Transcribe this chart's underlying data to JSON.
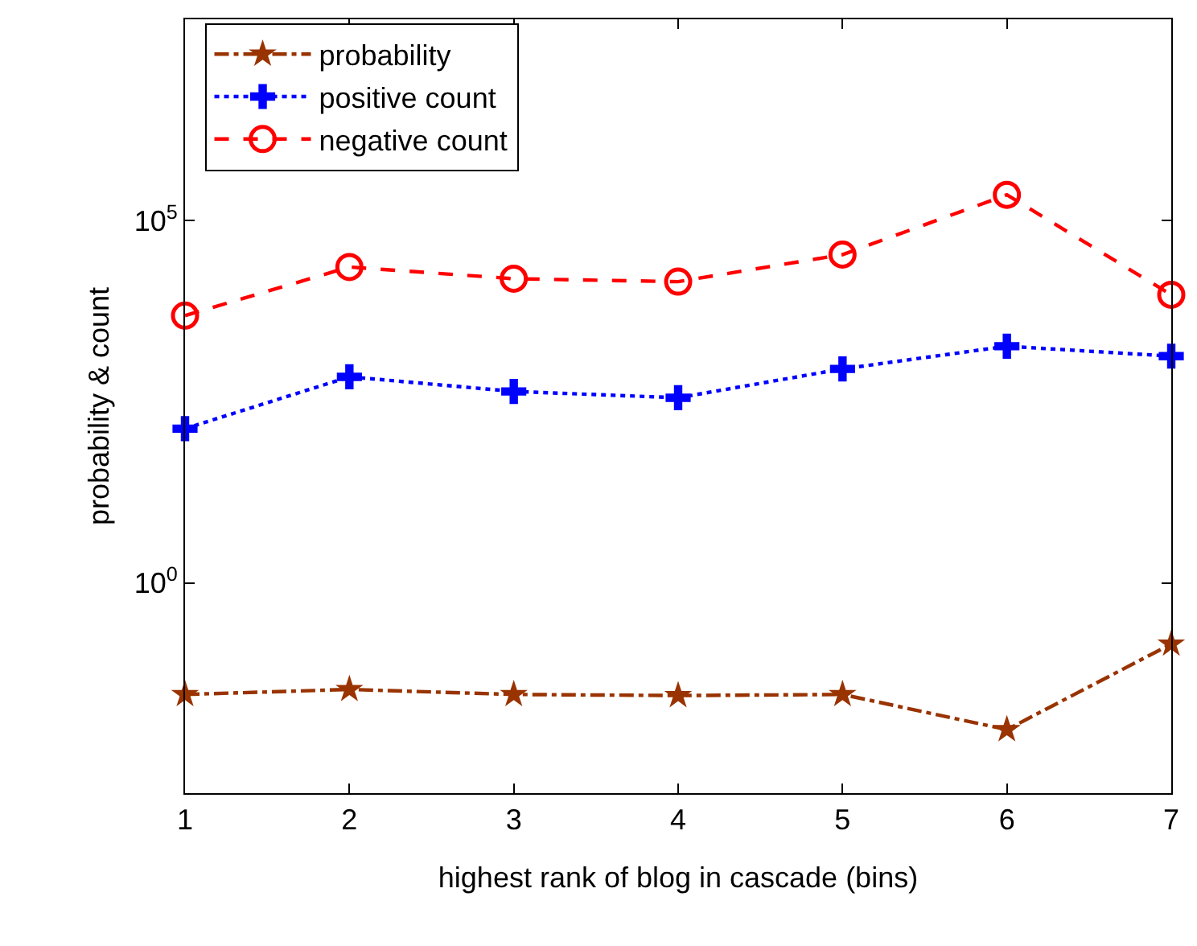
{
  "chart_data": {
    "type": "line",
    "xlabel": "highest rank of blog in cascade (bins)",
    "ylabel": "probability & count",
    "x": [
      1,
      2,
      3,
      4,
      5,
      6,
      7
    ],
    "xlim": [
      1,
      7
    ],
    "xticks": [
      1,
      2,
      3,
      4,
      5,
      6,
      7
    ],
    "log": "y",
    "ylim": [
      0.00126,
      60000000
    ],
    "yticks": [
      {
        "value": 1,
        "label": "10$^{0}$"
      },
      {
        "value": 100000,
        "label": "10$^{5}$"
      }
    ],
    "legend": "top left",
    "series": [
      {
        "name": "probability",
        "color": "#993300",
        "marker": "star",
        "line_style": "dashdot",
        "values": [
          0.029,
          0.034,
          0.029,
          0.028,
          0.029,
          0.0095,
          0.144
        ]
      },
      {
        "name": "positive count",
        "color": "#0000ff",
        "marker": "cross",
        "line_style": "dotted",
        "values": [
          135,
          700,
          440,
          360,
          900,
          1850,
          1350
        ]
      },
      {
        "name": "negative count",
        "color": "#ff0000",
        "marker": "circle",
        "line_style": "dashed",
        "values": [
          4900,
          22900,
          15800,
          14400,
          34000,
          227000,
          9500
        ]
      }
    ]
  }
}
